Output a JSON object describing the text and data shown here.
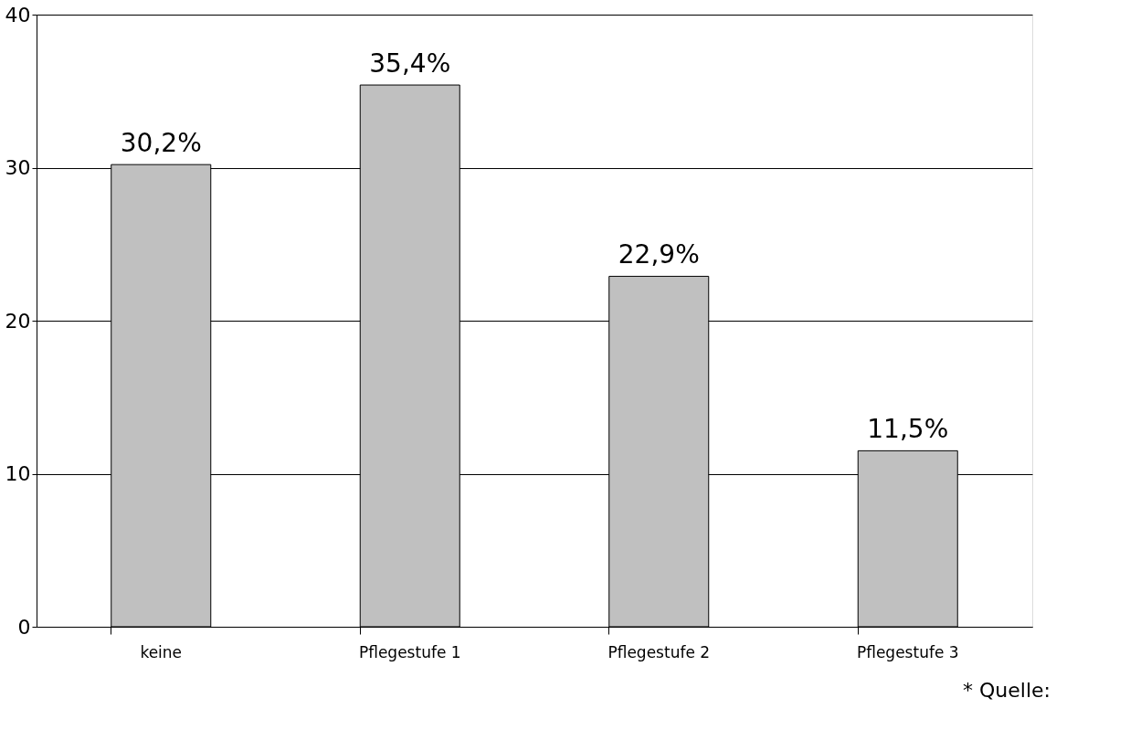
{
  "chart_data": {
    "type": "bar",
    "categories": [
      "keine",
      "Pflegestufe 1",
      "Pflegestufe 2",
      "Pflegestufe 3",
      null
    ],
    "values": [
      30.2,
      35.4,
      22.9,
      11.5,
      null
    ],
    "value_labels": [
      "30,2%",
      "35,4%",
      "22,9%",
      "11,5%",
      null
    ],
    "color": "#c0c0c0",
    "ylim": [
      0,
      40
    ],
    "yticks": [
      0,
      10,
      20,
      30,
      40
    ],
    "grid": "y",
    "annotations": [
      "* Quelle:"
    ]
  }
}
